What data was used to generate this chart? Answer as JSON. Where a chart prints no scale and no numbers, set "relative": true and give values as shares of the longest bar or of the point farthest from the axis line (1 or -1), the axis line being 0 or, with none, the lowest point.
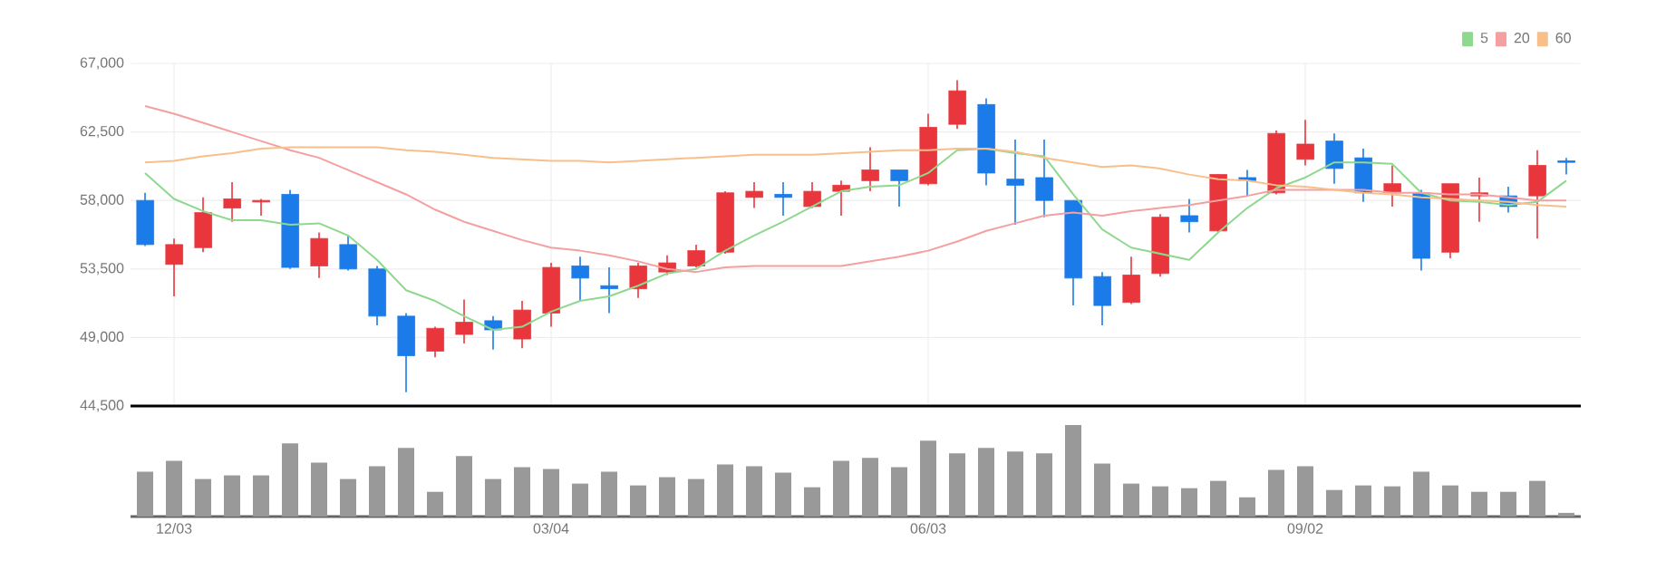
{
  "chart_data": [
    {
      "type": "candlestick",
      "categories": [
        null,
        null,
        null,
        null,
        null,
        null,
        null,
        null,
        null,
        null,
        null,
        null,
        null,
        null,
        null,
        null,
        null,
        null,
        null,
        null,
        null,
        null,
        null,
        null,
        null,
        null,
        null,
        null,
        null,
        null,
        null,
        null,
        null,
        null,
        null,
        null,
        null,
        null,
        null,
        null,
        null,
        null,
        null,
        null,
        null,
        null,
        null,
        null,
        null,
        null
      ],
      "ylim": [
        44500,
        67000
      ],
      "yticks": [
        {
          "value": 44500,
          "label": "44,500"
        },
        {
          "value": 49000,
          "label": "49,000"
        },
        {
          "value": 53500,
          "label": "53,500"
        },
        {
          "value": 58000,
          "label": "58,000"
        },
        {
          "value": 62500,
          "label": "62,500"
        },
        {
          "value": 67000,
          "label": "67,000"
        }
      ],
      "grid": true,
      "legend": "top right",
      "tick_labels": "y",
      "series": [
        {
          "type": "line",
          "name": "5",
          "color": "#8fd88f",
          "values": [
            59800,
            58100,
            57300,
            56700,
            56700,
            56400,
            56500,
            55700,
            54100,
            52100,
            51400,
            50400,
            49500,
            49700,
            50700,
            51400,
            51700,
            52400,
            53200,
            53500,
            54700,
            55700,
            56600,
            57600,
            58600,
            58900,
            59000,
            59800,
            61300,
            61400,
            61100,
            60900,
            58400,
            56100,
            54900,
            54500,
            54100,
            55900,
            57500,
            58800,
            59500,
            60500,
            60500,
            60400,
            58500,
            58000,
            57900,
            57700,
            57900,
            59300
          ]
        },
        {
          "type": "line",
          "name": "20",
          "color": "#f4a0a0",
          "values": [
            64200,
            63700,
            63100,
            62500,
            61900,
            61300,
            60800,
            60000,
            59200,
            58400,
            57400,
            56600,
            56000,
            55400,
            54900,
            54700,
            54400,
            54000,
            53500,
            53300,
            53600,
            53700,
            53700,
            53700,
            53700,
            54000,
            54300,
            54700,
            55300,
            56000,
            56500,
            57000,
            57200,
            57000,
            57300,
            57500,
            57700,
            58000,
            58300,
            58700,
            58700,
            58700,
            58700,
            58500,
            58500,
            58400,
            58400,
            58200,
            58000,
            58000
          ]
        },
        {
          "type": "line",
          "name": "60",
          "color": "#f7c08a",
          "values": [
            60500,
            60600,
            60900,
            61100,
            61400,
            61500,
            61500,
            61500,
            61500,
            61300,
            61200,
            61000,
            60800,
            60700,
            60600,
            60600,
            60500,
            60600,
            60700,
            60800,
            60900,
            61000,
            61000,
            61000,
            61100,
            61200,
            61300,
            61300,
            61400,
            61400,
            61200,
            60800,
            60500,
            60200,
            60300,
            60100,
            59700,
            59400,
            59300,
            59000,
            58900,
            58700,
            58500,
            58400,
            58200,
            58100,
            58000,
            57900,
            57700,
            57600
          ]
        },
        {
          "type": "candlestick",
          "colors": [
            "#1b7be8",
            "#e8363c",
            "#e8363c",
            "#e8363c",
            "#e8363c",
            "#1b7be8",
            "#e8363c",
            "#1b7be8",
            "#1b7be8",
            "#1b7be8",
            "#e8363c",
            "#e8363c",
            "#1b7be8",
            "#e8363c",
            "#e8363c",
            "#1b7be8",
            "#1b7be8",
            "#e8363c",
            "#e8363c",
            "#e8363c",
            "#e8363c",
            "#e8363c",
            "#1b7be8",
            "#e8363c",
            "#e8363c",
            "#e8363c",
            "#1b7be8",
            "#e8363c",
            "#e8363c",
            "#1b7be8",
            "#1b7be8",
            "#1b7be8",
            "#1b7be8",
            "#1b7be8",
            "#e8363c",
            "#e8363c",
            "#1b7be8",
            "#e8363c",
            "#1b7be8",
            "#e8363c",
            "#e8363c",
            "#1b7be8",
            "#1b7be8",
            "#e8363c",
            "#1b7be8",
            "#e8363c",
            "#e8363c",
            "#1b7be8",
            "#e8363c",
            "#1b7be8"
          ],
          "ohlc": [
            [
              58000,
              58500,
              55000,
              55100
            ],
            [
              53800,
              55500,
              51700,
              55100
            ],
            [
              54900,
              58200,
              54600,
              57200
            ],
            [
              57500,
              59200,
              56600,
              58100
            ],
            [
              57900,
              58100,
              57000,
              58000
            ],
            [
              58400,
              58700,
              53500,
              53600
            ],
            [
              53700,
              55900,
              52900,
              55500
            ],
            [
              55100,
              55700,
              53400,
              53500
            ],
            [
              53500,
              53700,
              49800,
              50400
            ],
            [
              50400,
              50600,
              45400,
              47800
            ],
            [
              48100,
              49700,
              47700,
              49600
            ],
            [
              49200,
              51500,
              48600,
              50000
            ],
            [
              50100,
              50400,
              48200,
              49500
            ],
            [
              48900,
              51400,
              48300,
              50800
            ],
            [
              50600,
              53900,
              49700,
              53600
            ],
            [
              53700,
              54300,
              51400,
              52900
            ],
            [
              52400,
              53600,
              50600,
              52200
            ],
            [
              52200,
              53900,
              51600,
              53700
            ],
            [
              53300,
              54400,
              53100,
              53900
            ],
            [
              53700,
              55100,
              53600,
              54700
            ],
            [
              54600,
              58600,
              54500,
              58500
            ],
            [
              58200,
              59200,
              57500,
              58600
            ],
            [
              58400,
              59200,
              57000,
              58200
            ],
            [
              57600,
              59200,
              57500,
              58600
            ],
            [
              58600,
              59300,
              57000,
              59000
            ],
            [
              59300,
              61500,
              58600,
              60000
            ],
            [
              60000,
              60000,
              57600,
              59300
            ],
            [
              59100,
              63700,
              59000,
              62800
            ],
            [
              63000,
              65900,
              62700,
              65200
            ],
            [
              64300,
              64700,
              59000,
              59800
            ],
            [
              59400,
              62000,
              56400,
              59000
            ],
            [
              59500,
              62000,
              56900,
              58000
            ],
            [
              58000,
              58000,
              51100,
              52900
            ],
            [
              53000,
              53300,
              49800,
              51100
            ],
            [
              51300,
              54300,
              51200,
              53100
            ],
            [
              53200,
              57100,
              53000,
              56900
            ],
            [
              57000,
              58100,
              55900,
              56600
            ],
            [
              56000,
              59700,
              55900,
              59700
            ],
            [
              59500,
              60000,
              58300,
              59300
            ],
            [
              58500,
              62600,
              58400,
              62400
            ],
            [
              60700,
              63300,
              60300,
              61700
            ],
            [
              61900,
              62400,
              59100,
              60100
            ],
            [
              60800,
              61400,
              57900,
              58500
            ],
            [
              58500,
              60300,
              57600,
              59100
            ],
            [
              58500,
              58700,
              53400,
              54200
            ],
            [
              54600,
              59100,
              54200,
              59100
            ],
            [
              58300,
              59500,
              56600,
              58500
            ],
            [
              58300,
              58900,
              57200,
              57600
            ],
            [
              58300,
              61300,
              55500,
              60300
            ],
            [
              60600,
              60800,
              59700,
              60500
            ]
          ]
        }
      ]
    },
    {
      "type": "bar",
      "relative": true,
      "tick_labels": "x",
      "color": "#999999",
      "categories": [
        null,
        "12/03",
        null,
        null,
        null,
        null,
        null,
        null,
        null,
        null,
        null,
        null,
        null,
        null,
        "03/04",
        null,
        null,
        null,
        null,
        null,
        null,
        null,
        null,
        null,
        null,
        null,
        null,
        "06/03",
        null,
        null,
        null,
        null,
        null,
        null,
        null,
        null,
        null,
        null,
        null,
        null,
        "09/02",
        null,
        null,
        null,
        null,
        null,
        null,
        null,
        null,
        null
      ],
      "values": [
        0.49,
        0.61,
        0.41,
        0.45,
        0.45,
        0.8,
        0.59,
        0.41,
        0.55,
        0.75,
        0.27,
        0.66,
        0.41,
        0.54,
        0.52,
        0.36,
        0.49,
        0.34,
        0.43,
        0.41,
        0.57,
        0.55,
        0.48,
        0.32,
        0.61,
        0.64,
        0.54,
        0.83,
        0.69,
        0.75,
        0.71,
        0.69,
        1,
        0.58,
        0.36,
        0.33,
        0.31,
        0.39,
        0.21,
        0.51,
        0.55,
        0.29,
        0.34,
        0.33,
        0.49,
        0.34,
        0.27,
        0.27,
        0.39,
        0.04
      ]
    }
  ]
}
